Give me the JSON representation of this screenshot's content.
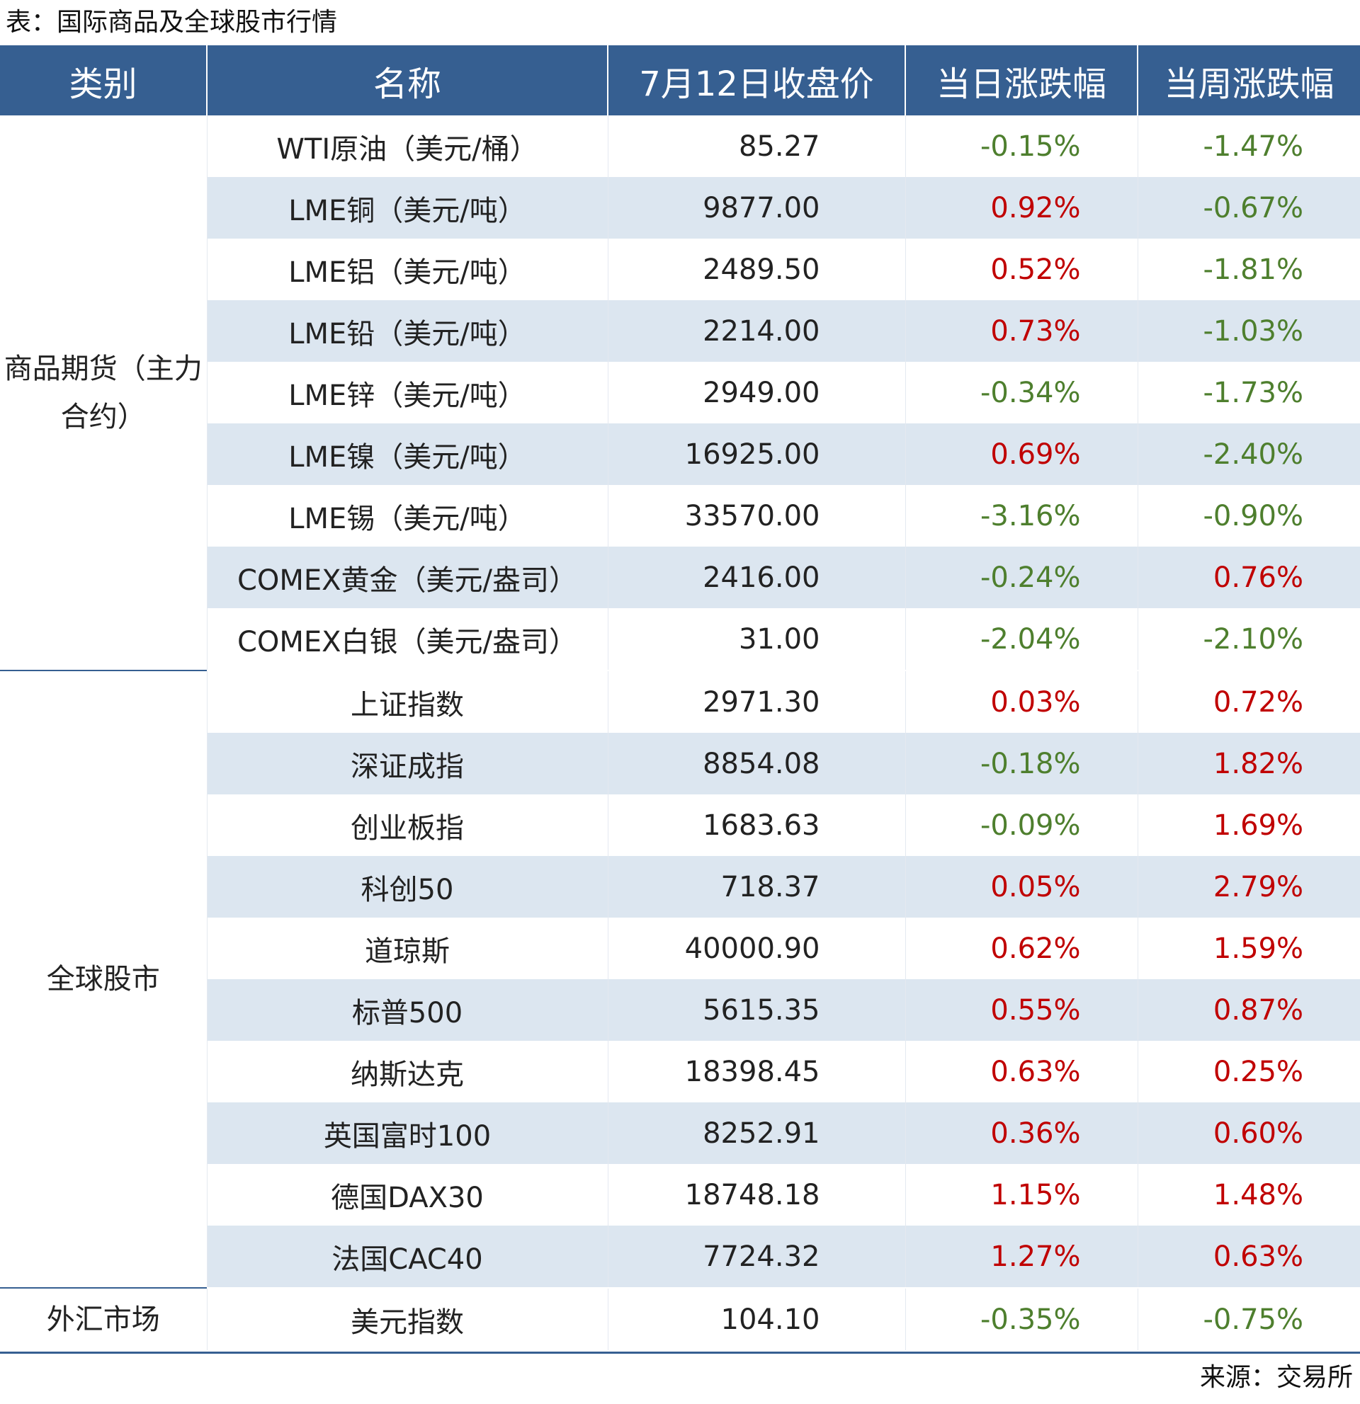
{
  "title": "表：国际商品及全球股市行情",
  "columns": [
    "类别",
    "名称",
    "7月12日收盘价",
    "当日涨跌幅",
    "当周涨跌幅"
  ],
  "colors": {
    "header_bg": "#365f91",
    "row_shade": "#dce6f0",
    "up": "#c00000",
    "down": "#4e7f2e"
  },
  "groups": [
    {
      "category": "商品期货（主力合约）",
      "rows": [
        {
          "name": "WTI原油（美元/桶）",
          "price": "85.27",
          "day": "-0.15%",
          "week": "-1.47%"
        },
        {
          "name": "LME铜（美元/吨）",
          "price": "9877.00",
          "day": "0.92%",
          "week": "-0.67%"
        },
        {
          "name": "LME铝（美元/吨）",
          "price": "2489.50",
          "day": "0.52%",
          "week": "-1.81%"
        },
        {
          "name": "LME铅（美元/吨）",
          "price": "2214.00",
          "day": "0.73%",
          "week": "-1.03%"
        },
        {
          "name": "LME锌（美元/吨）",
          "price": "2949.00",
          "day": "-0.34%",
          "week": "-1.73%"
        },
        {
          "name": "LME镍（美元/吨）",
          "price": "16925.00",
          "day": "0.69%",
          "week": "-2.40%"
        },
        {
          "name": "LME锡（美元/吨）",
          "price": "33570.00",
          "day": "-3.16%",
          "week": "-0.90%"
        },
        {
          "name": "COMEX黄金（美元/盎司）",
          "price": "2416.00",
          "day": "-0.24%",
          "week": "0.76%"
        },
        {
          "name": "COMEX白银（美元/盎司）",
          "price": "31.00",
          "day": "-2.04%",
          "week": "-2.10%"
        }
      ]
    },
    {
      "category": "全球股市",
      "rows": [
        {
          "name": "上证指数",
          "price": "2971.30",
          "day": "0.03%",
          "week": "0.72%"
        },
        {
          "name": "深证成指",
          "price": "8854.08",
          "day": "-0.18%",
          "week": "1.82%"
        },
        {
          "name": "创业板指",
          "price": "1683.63",
          "day": "-0.09%",
          "week": "1.69%"
        },
        {
          "name": "科创50",
          "price": "718.37",
          "day": "0.05%",
          "week": "2.79%"
        },
        {
          "name": "道琼斯",
          "price": "40000.90",
          "day": "0.62%",
          "week": "1.59%"
        },
        {
          "name": "标普500",
          "price": "5615.35",
          "day": "0.55%",
          "week": "0.87%"
        },
        {
          "name": "纳斯达克",
          "price": "18398.45",
          "day": "0.63%",
          "week": "0.25%"
        },
        {
          "name": "英国富时100",
          "price": "8252.91",
          "day": "0.36%",
          "week": "0.60%"
        },
        {
          "name": "德国DAX30",
          "price": "18748.18",
          "day": "1.15%",
          "week": "1.48%"
        },
        {
          "name": "法国CAC40",
          "price": "7724.32",
          "day": "1.27%",
          "week": "0.63%"
        }
      ]
    },
    {
      "category": "外汇市场",
      "rows": [
        {
          "name": "美元指数",
          "price": "104.10",
          "day": "-0.35%",
          "week": "-0.75%"
        }
      ]
    }
  ],
  "source": "来源：交易所"
}
